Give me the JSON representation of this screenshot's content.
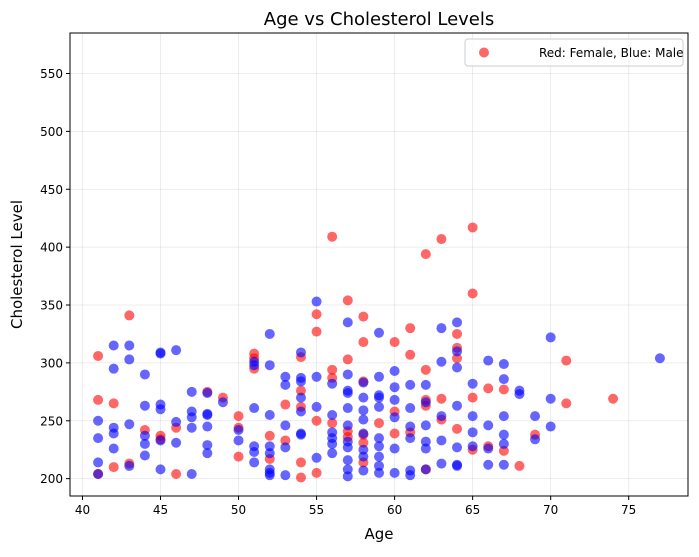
{
  "chart_data": {
    "type": "scatter",
    "title": "Age vs Cholesterol Levels",
    "xlabel": "Age",
    "ylabel": "Cholesterol Level",
    "xlim": [
      39.2,
      78.8
    ],
    "ylim": [
      185,
      585
    ],
    "xticks": [
      40,
      45,
      50,
      55,
      60,
      65,
      70,
      75
    ],
    "yticks": [
      200,
      250,
      300,
      350,
      400,
      450,
      500,
      550
    ],
    "grid": true,
    "legend": {
      "placement": "upper right",
      "label": "Red: Female, Blue: Male"
    },
    "colors": {
      "female": "#ff0000",
      "male": "#0000ff",
      "legend_marker": "#ff0000"
    },
    "marker_alpha": 0.6,
    "series": [
      {
        "color_key": "female",
        "points": [
          [
            41,
            306
          ],
          [
            41,
            268
          ],
          [
            41,
            204
          ],
          [
            42,
            265
          ],
          [
            42,
            210
          ],
          [
            43,
            341
          ],
          [
            43,
            213
          ],
          [
            44,
            242
          ],
          [
            45,
            237
          ],
          [
            45,
            234
          ],
          [
            46,
            244
          ],
          [
            46,
            204
          ],
          [
            48,
            275
          ],
          [
            49,
            270
          ],
          [
            50,
            254
          ],
          [
            50,
            244
          ],
          [
            50,
            219
          ],
          [
            51,
            308
          ],
          [
            51,
            304
          ],
          [
            51,
            295
          ],
          [
            52,
            237
          ],
          [
            52,
            217
          ],
          [
            53,
            264
          ],
          [
            53,
            233
          ],
          [
            54,
            305
          ],
          [
            54,
            276
          ],
          [
            54,
            262
          ],
          [
            54,
            214
          ],
          [
            54,
            201
          ],
          [
            55,
            342
          ],
          [
            55,
            327
          ],
          [
            55,
            250
          ],
          [
            55,
            205
          ],
          [
            56,
            409
          ],
          [
            56,
            294
          ],
          [
            56,
            287
          ],
          [
            56,
            248
          ],
          [
            57,
            354
          ],
          [
            57,
            303
          ],
          [
            57,
            241
          ],
          [
            57,
            236
          ],
          [
            58,
            340
          ],
          [
            58,
            318
          ],
          [
            58,
            284
          ],
          [
            58,
            238
          ],
          [
            58,
            231
          ],
          [
            58,
            214
          ],
          [
            59,
            248
          ],
          [
            60,
            318
          ],
          [
            60,
            258
          ],
          [
            60,
            239
          ],
          [
            61,
            330
          ],
          [
            61,
            307
          ],
          [
            61,
            240
          ],
          [
            62,
            394
          ],
          [
            62,
            294
          ],
          [
            62,
            268
          ],
          [
            62,
            263
          ],
          [
            62,
            208
          ],
          [
            63,
            407
          ],
          [
            63,
            269
          ],
          [
            63,
            251
          ],
          [
            64,
            325
          ],
          [
            64,
            313
          ],
          [
            64,
            304
          ],
          [
            64,
            243
          ],
          [
            65,
            417
          ],
          [
            65,
            360
          ],
          [
            65,
            270
          ],
          [
            65,
            225
          ],
          [
            66,
            278
          ],
          [
            66,
            228
          ],
          [
            67,
            277
          ],
          [
            67,
            224
          ],
          [
            68,
            211
          ],
          [
            69,
            238
          ],
          [
            71,
            302
          ],
          [
            71,
            265
          ],
          [
            74,
            269
          ]
        ]
      },
      {
        "color_key": "male",
        "points": [
          [
            41,
            250
          ],
          [
            41,
            235
          ],
          [
            41,
            214
          ],
          [
            41,
            204
          ],
          [
            42,
            315
          ],
          [
            42,
            295
          ],
          [
            42,
            244
          ],
          [
            42,
            239
          ],
          [
            42,
            226
          ],
          [
            43,
            315
          ],
          [
            43,
            303
          ],
          [
            43,
            247
          ],
          [
            43,
            211
          ],
          [
            44,
            290
          ],
          [
            44,
            263
          ],
          [
            44,
            237
          ],
          [
            44,
            230
          ],
          [
            44,
            220
          ],
          [
            45,
            309
          ],
          [
            45,
            308
          ],
          [
            45,
            264
          ],
          [
            45,
            260
          ],
          [
            45,
            233
          ],
          [
            45,
            208
          ],
          [
            46,
            311
          ],
          [
            46,
            249
          ],
          [
            46,
            231
          ],
          [
            47,
            275
          ],
          [
            47,
            258
          ],
          [
            47,
            253
          ],
          [
            47,
            244
          ],
          [
            47,
            204
          ],
          [
            48,
            274
          ],
          [
            48,
            256
          ],
          [
            48,
            255
          ],
          [
            48,
            245
          ],
          [
            48,
            229
          ],
          [
            48,
            222
          ],
          [
            49,
            266
          ],
          [
            50,
            242
          ],
          [
            50,
            233
          ],
          [
            51,
            301
          ],
          [
            51,
            298
          ],
          [
            51,
            261
          ],
          [
            51,
            228
          ],
          [
            51,
            223
          ],
          [
            51,
            214
          ],
          [
            52,
            325
          ],
          [
            52,
            298
          ],
          [
            52,
            255
          ],
          [
            52,
            228
          ],
          [
            52,
            222
          ],
          [
            52,
            208
          ],
          [
            52,
            205
          ],
          [
            52,
            203
          ],
          [
            53,
            288
          ],
          [
            53,
            281
          ],
          [
            53,
            246
          ],
          [
            53,
            227
          ],
          [
            53,
            203
          ],
          [
            54,
            309
          ],
          [
            54,
            287
          ],
          [
            54,
            284
          ],
          [
            54,
            270
          ],
          [
            54,
            258
          ],
          [
            54,
            239
          ],
          [
            54,
            238
          ],
          [
            55,
            353
          ],
          [
            55,
            288
          ],
          [
            55,
            262
          ],
          [
            55,
            218
          ],
          [
            56,
            282
          ],
          [
            56,
            255
          ],
          [
            56,
            240
          ],
          [
            56,
            235
          ],
          [
            56,
            230
          ],
          [
            56,
            222
          ],
          [
            57,
            335
          ],
          [
            57,
            290
          ],
          [
            57,
            276
          ],
          [
            57,
            274
          ],
          [
            57,
            261
          ],
          [
            57,
            246
          ],
          [
            57,
            232
          ],
          [
            57,
            227
          ],
          [
            57,
            216
          ],
          [
            57,
            208
          ],
          [
            57,
            202
          ],
          [
            58,
            283
          ],
          [
            58,
            270
          ],
          [
            58,
            259
          ],
          [
            58,
            251
          ],
          [
            58,
            239
          ],
          [
            58,
            225
          ],
          [
            58,
            219
          ],
          [
            58,
            207
          ],
          [
            59,
            326
          ],
          [
            59,
            288
          ],
          [
            59,
            272
          ],
          [
            59,
            270
          ],
          [
            59,
            262
          ],
          [
            59,
            235
          ],
          [
            59,
            228
          ],
          [
            59,
            219
          ],
          [
            59,
            211
          ],
          [
            59,
            205
          ],
          [
            60,
            293
          ],
          [
            60,
            279
          ],
          [
            60,
            268
          ],
          [
            60,
            253
          ],
          [
            60,
            226
          ],
          [
            60,
            205
          ],
          [
            61,
            281
          ],
          [
            61,
            261
          ],
          [
            61,
            245
          ],
          [
            61,
            235
          ],
          [
            61,
            207
          ],
          [
            61,
            203
          ],
          [
            62,
            281
          ],
          [
            62,
            266
          ],
          [
            62,
            246
          ],
          [
            62,
            232
          ],
          [
            62,
            226
          ],
          [
            62,
            208
          ],
          [
            63,
            330
          ],
          [
            63,
            301
          ],
          [
            63,
            254
          ],
          [
            63,
            233
          ],
          [
            63,
            213
          ],
          [
            64,
            335
          ],
          [
            64,
            310
          ],
          [
            64,
            296
          ],
          [
            64,
            263
          ],
          [
            64,
            227
          ],
          [
            64,
            212
          ],
          [
            64,
            211
          ],
          [
            65,
            282
          ],
          [
            65,
            254
          ],
          [
            65,
            240
          ],
          [
            65,
            228
          ],
          [
            66,
            302
          ],
          [
            66,
            246
          ],
          [
            66,
            226
          ],
          [
            66,
            212
          ],
          [
            67,
            299
          ],
          [
            67,
            286
          ],
          [
            67,
            254
          ],
          [
            67,
            238
          ],
          [
            67,
            230
          ],
          [
            67,
            212
          ],
          [
            68,
            276
          ],
          [
            68,
            273
          ],
          [
            69,
            254
          ],
          [
            69,
            234
          ],
          [
            70,
            322
          ],
          [
            70,
            269
          ],
          [
            70,
            245
          ],
          [
            77,
            304
          ]
        ]
      }
    ]
  }
}
